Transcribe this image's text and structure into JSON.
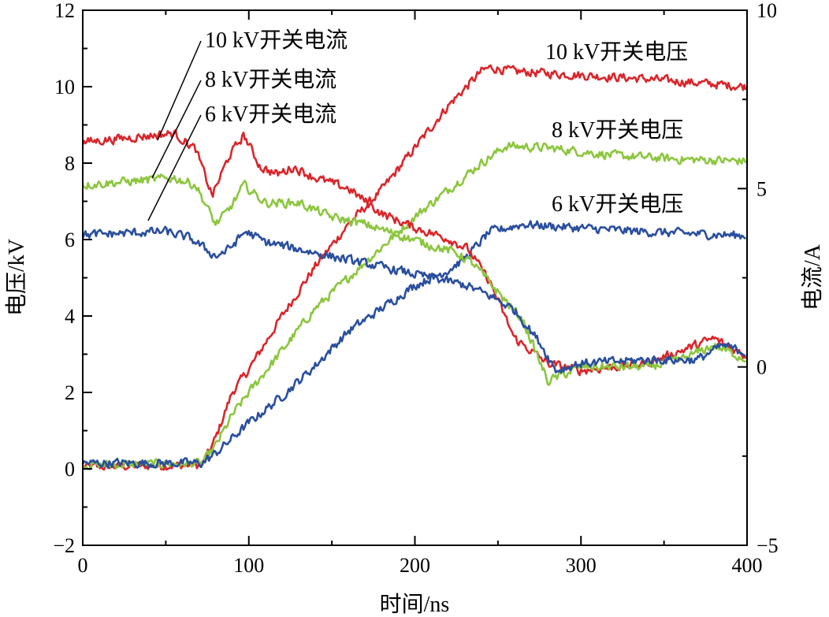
{
  "chart_data": {
    "type": "line",
    "title": "",
    "xlabel": "时间/ns",
    "ylabel_left": "电压/kV",
    "ylabel_right": "电流/A",
    "xlim": [
      0,
      400
    ],
    "ylim_left": [
      -2,
      12
    ],
    "ylim_right": [
      -5,
      10
    ],
    "x_ticks": [
      "0",
      "100",
      "200",
      "300",
      "400"
    ],
    "y_left_ticks": [
      "−2",
      "0",
      "2",
      "4",
      "6",
      "8",
      "10",
      "12"
    ],
    "y_right_ticks": [
      "−5",
      "0",
      "5",
      "10"
    ],
    "colors": {
      "red": "#d9262b",
      "green": "#8cc63f",
      "blue": "#2a4f9e"
    },
    "series": [
      {
        "name": "10 kV开关电压",
        "axis": "left",
        "color": "#d9262b",
        "x": [
          0,
          72,
          80,
          90,
          100,
          120,
          140,
          160,
          180,
          200,
          220,
          240,
          245,
          260,
          300,
          340,
          400
        ],
        "y": [
          0.05,
          0.1,
          0.8,
          2.0,
          2.6,
          4.0,
          5.3,
          6.4,
          7.3,
          8.4,
          9.5,
          10.4,
          10.5,
          10.4,
          10.3,
          10.2,
          10.0
        ]
      },
      {
        "name": "8 kV开关电压",
        "axis": "left",
        "color": "#8cc63f",
        "x": [
          0,
          72,
          80,
          90,
          100,
          120,
          140,
          160,
          180,
          200,
          220,
          240,
          255,
          280,
          320,
          360,
          400
        ],
        "y": [
          0.1,
          0.15,
          0.6,
          1.4,
          2.0,
          3.1,
          4.2,
          5.0,
          5.8,
          6.6,
          7.3,
          8.0,
          8.45,
          8.4,
          8.2,
          8.1,
          8.05
        ]
      },
      {
        "name": "6 kV开关电压",
        "axis": "left",
        "color": "#2a4f9e",
        "x": [
          0,
          72,
          80,
          90,
          100,
          120,
          140,
          160,
          180,
          200,
          220,
          230,
          245,
          265,
          300,
          340,
          400
        ],
        "y": [
          0.15,
          0.15,
          0.4,
          0.8,
          1.2,
          1.9,
          2.7,
          3.6,
          4.2,
          4.8,
          5.2,
          5.5,
          6.2,
          6.4,
          6.3,
          6.2,
          6.1
        ]
      },
      {
        "name": "10 kV开关电流",
        "axis": "right",
        "color": "#d9262b",
        "x": [
          0,
          55,
          68,
          78,
          88,
          97,
          107,
          117,
          127,
          140,
          160,
          180,
          200,
          220,
          232,
          245,
          260,
          280,
          300,
          340,
          380,
          400
        ],
        "y": [
          6.3,
          6.55,
          6.1,
          4.8,
          5.9,
          6.5,
          5.6,
          5.4,
          5.6,
          5.3,
          5.0,
          4.3,
          3.9,
          3.6,
          3.3,
          2.4,
          0.8,
          0.1,
          -0.1,
          0.1,
          0.8,
          0.3
        ]
      },
      {
        "name": "8 kV开关电流",
        "axis": "right",
        "color": "#8cc63f",
        "x": [
          0,
          55,
          68,
          80,
          88,
          97,
          110,
          130,
          150,
          170,
          190,
          210,
          225,
          235,
          250,
          265,
          280,
          300,
          340,
          360,
          380,
          400
        ],
        "y": [
          5.1,
          5.3,
          5.1,
          4.0,
          4.4,
          5.1,
          4.6,
          4.6,
          4.2,
          4.0,
          3.7,
          3.4,
          3.2,
          2.9,
          2.1,
          1.3,
          -0.4,
          0.0,
          0.0,
          0.2,
          0.6,
          0.2
        ]
      },
      {
        "name": "6 kV开关电流",
        "axis": "right",
        "color": "#2a4f9e",
        "x": [
          0,
          50,
          65,
          80,
          88,
          98,
          110,
          130,
          150,
          170,
          190,
          210,
          230,
          245,
          260,
          275,
          285,
          300,
          340,
          370,
          385,
          400
        ],
        "y": [
          3.7,
          3.8,
          3.6,
          3.1,
          3.3,
          3.8,
          3.5,
          3.3,
          3.1,
          2.9,
          2.7,
          2.5,
          2.3,
          2.0,
          1.6,
          0.7,
          -0.1,
          0.1,
          0.2,
          0.2,
          0.6,
          0.4
        ]
      }
    ],
    "annotations": [
      {
        "text": "10 kV开关电流",
        "series": "10 kV开关电流"
      },
      {
        "text": "8 kV开关电流",
        "series": "8 kV开关电流"
      },
      {
        "text": "6 kV开关电流",
        "series": "6 kV开关电流"
      },
      {
        "text": "10 kV开关电压",
        "series": "10 kV开关电压"
      },
      {
        "text": "8 kV开关电压",
        "series": "8 kV开关电压"
      },
      {
        "text": "6 kV开关电压",
        "series": "6 kV开关电压"
      }
    ]
  }
}
